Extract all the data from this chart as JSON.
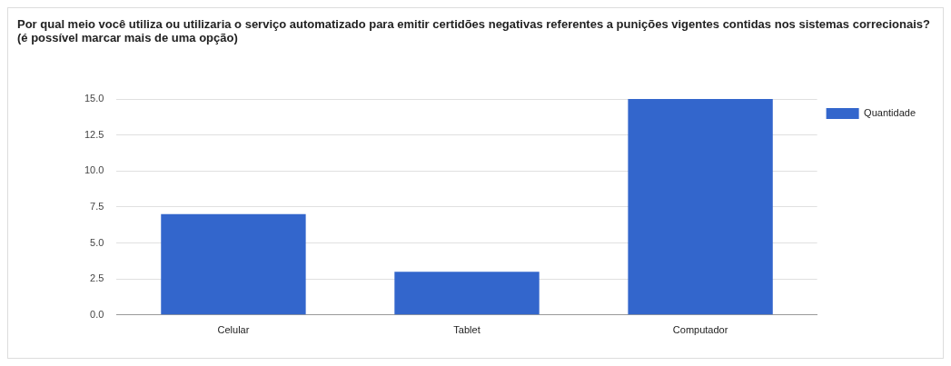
{
  "chart_data": {
    "type": "bar",
    "title": "Por qual meio você utiliza ou utilizaria o serviço automatizado para emitir certidões negativas referentes a punições vigentes contidas nos sistemas correcionais? (é possível marcar mais de uma opção)",
    "categories": [
      "Celular",
      "Tablet",
      "Computador"
    ],
    "series": [
      {
        "name": "Quantidade",
        "color": "#3366cc",
        "values": [
          7,
          3,
          15
        ]
      }
    ],
    "ylim": [
      0,
      15
    ],
    "yticks": [
      {
        "value": 0,
        "label": "0.0"
      },
      2.5,
      {
        "value": 5,
        "label": "5.0"
      },
      7.5,
      {
        "value": 10,
        "label": "10.0"
      },
      12.5,
      {
        "value": 15,
        "label": "15.0"
      }
    ],
    "grid": "y",
    "legend": "top right"
  }
}
